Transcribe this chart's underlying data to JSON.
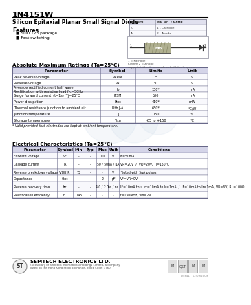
{
  "title": "1N4151W",
  "subtitle": "Silicon Epitaxial Planar Small Signal Diode",
  "bg_color": "#ffffff",
  "features_title": "Features",
  "features": [
    "SOD 123 package",
    "Fast switching"
  ],
  "abs_max_title": "Absolute Maximum Ratings (Ta=25°C)",
  "abs_max_headers": [
    "Parameter",
    "Symbol",
    "Limits",
    "Unit"
  ],
  "abs_max_rows": [
    [
      "Peak reverse voltage",
      "VRRM",
      "75",
      "V"
    ],
    [
      "Reverse voltage",
      "VR",
      "50",
      "V"
    ],
    [
      "Average rectified current half wave\nRectification with resistive load f<=50Hz",
      "Io",
      "150*",
      "mA"
    ],
    [
      "Surge forward current  (t=1s)  Tj=25°C",
      "IFSM",
      "500",
      "mA"
    ],
    [
      "Power dissipation",
      "Ptot",
      "410*",
      "mW"
    ],
    [
      "Thermal resistance junction to ambient air",
      "Rth J-A",
      "650*",
      "°C/W"
    ],
    [
      "Junction temperature",
      "Tj",
      "150",
      "°C"
    ],
    [
      "Storage temperature",
      "Tstg",
      "-65 to +150",
      "°C"
    ]
  ],
  "abs_max_note": "* Valid provided that electrodes are kept at ambient temperature.",
  "elec_char_title": "Electrical Characteristics (Ta=25°C)",
  "elec_char_headers": [
    "Parameter",
    "Symbol",
    "Min",
    "Typ",
    "Max",
    "Unit",
    "Conditions"
  ],
  "elec_char_rows": [
    [
      "Forward voltage",
      "VF",
      "-",
      "-",
      "1.0",
      "V",
      "IF=50mA"
    ],
    [
      "Leakage current",
      "IR",
      "-",
      "-",
      "50 / 50",
      "nA / μA",
      "VR=20V  /  VR=20V, Tj=150°C"
    ],
    [
      "Reverse breakdown voltage",
      "V(BR)R",
      "75",
      "-",
      "-",
      "V",
      "Tested with 5μA pulses"
    ],
    [
      "Capacitance",
      "Ctot",
      "-",
      "-",
      "2",
      "pF",
      "VF=VR=0V"
    ],
    [
      "Reverse recovery time",
      "trr",
      "-",
      "-",
      "4.0 / 2.0",
      "ns / ns",
      "IF=10mA thru Irr=10mA to Ir=1mA  /  IF=10mA to Ir=1mA, VR=6V, RL=100Ω"
    ],
    [
      "Rectification efficiency",
      "ηL",
      "0.45",
      "-",
      "-",
      "-",
      "f=150MHz, Vin=2V"
    ]
  ],
  "pin_table_headers": [
    "SYMBOL",
    "PIN NO. / NAME"
  ],
  "pin_table_rows": [
    [
      "K",
      "1 - Cathode"
    ],
    [
      "A",
      "2 - Anode"
    ]
  ],
  "company_name": "SEMTECH ELECTRONICS LTD.",
  "company_line1": "(Subsidiary of Semtech International Holdings Limited, a company",
  "company_line2": "listed on the Hong Kong Stock Exchange, Stock Code: 1760)",
  "doc_number": "DS841   12/09/2009",
  "header_bg": "#d4d4e8",
  "table_line_color": "#666688",
  "watermark_color": "#c8d8e8"
}
